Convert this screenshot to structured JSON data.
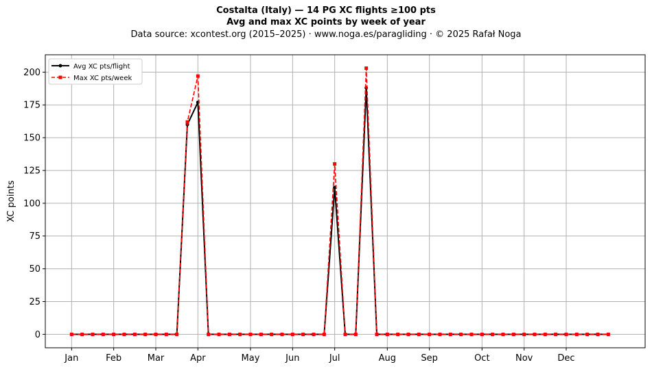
{
  "chart_data": {
    "type": "line",
    "title": "Costalta (Italy)  —  14 PG XC flights ≥100 pts",
    "subtitle": "Avg and max XC points by week of year",
    "source_line": "Data source: xcontest.org (2015–2025)  ·  www.noga.es/paragliding  ·  © 2025 Rafał Noga",
    "xlabel": "",
    "ylabel": "XC points",
    "xlim": [
      -2.5,
      54.5
    ],
    "ylim": [
      -10.25,
      213.25
    ],
    "yticks": [
      0,
      25,
      50,
      75,
      100,
      125,
      150,
      175,
      200
    ],
    "xticks": [
      {
        "label": "Jan",
        "week": 0
      },
      {
        "label": "Feb",
        "week": 4
      },
      {
        "label": "Mar",
        "week": 8
      },
      {
        "label": "Apr",
        "week": 12
      },
      {
        "label": "May",
        "week": 17
      },
      {
        "label": "Jun",
        "week": 21
      },
      {
        "label": "Jul",
        "week": 25
      },
      {
        "label": "Aug",
        "week": 30
      },
      {
        "label": "Sep",
        "week": 34
      },
      {
        "label": "Oct",
        "week": 39
      },
      {
        "label": "Nov",
        "week": 43
      },
      {
        "label": "Dec",
        "week": 47
      }
    ],
    "x": [
      0,
      1,
      2,
      3,
      4,
      5,
      6,
      7,
      8,
      9,
      10,
      11,
      12,
      13,
      14,
      15,
      16,
      17,
      18,
      19,
      20,
      21,
      22,
      23,
      24,
      25,
      26,
      27,
      28,
      29,
      30,
      31,
      32,
      33,
      34,
      35,
      36,
      37,
      38,
      39,
      40,
      41,
      42,
      43,
      44,
      45,
      46,
      47,
      48,
      49,
      50,
      51
    ],
    "series": [
      {
        "name": "Avg XC pts/flight",
        "color": "#000000",
        "style": "solid",
        "marker": "circle",
        "values": [
          0,
          0,
          0,
          0,
          0,
          0,
          0,
          0,
          0,
          0,
          0,
          160,
          177,
          0,
          0,
          0,
          0,
          0,
          0,
          0,
          0,
          0,
          0,
          0,
          0,
          112,
          0,
          0,
          188,
          0,
          0,
          0,
          0,
          0,
          0,
          0,
          0,
          0,
          0,
          0,
          0,
          0,
          0,
          0,
          0,
          0,
          0,
          0,
          0,
          0,
          0,
          0
        ]
      },
      {
        "name": "Max XC pts/week",
        "color": "#ff0000",
        "style": "dashed",
        "marker": "square",
        "values": [
          0,
          0,
          0,
          0,
          0,
          0,
          0,
          0,
          0,
          0,
          0,
          162,
          197,
          0,
          0,
          0,
          0,
          0,
          0,
          0,
          0,
          0,
          0,
          0,
          0,
          130,
          0,
          0,
          203,
          0,
          0,
          0,
          0,
          0,
          0,
          0,
          0,
          0,
          0,
          0,
          0,
          0,
          0,
          0,
          0,
          0,
          0,
          0,
          0,
          0,
          0,
          0
        ]
      }
    ],
    "grid": true,
    "legend_position": "top-left"
  }
}
